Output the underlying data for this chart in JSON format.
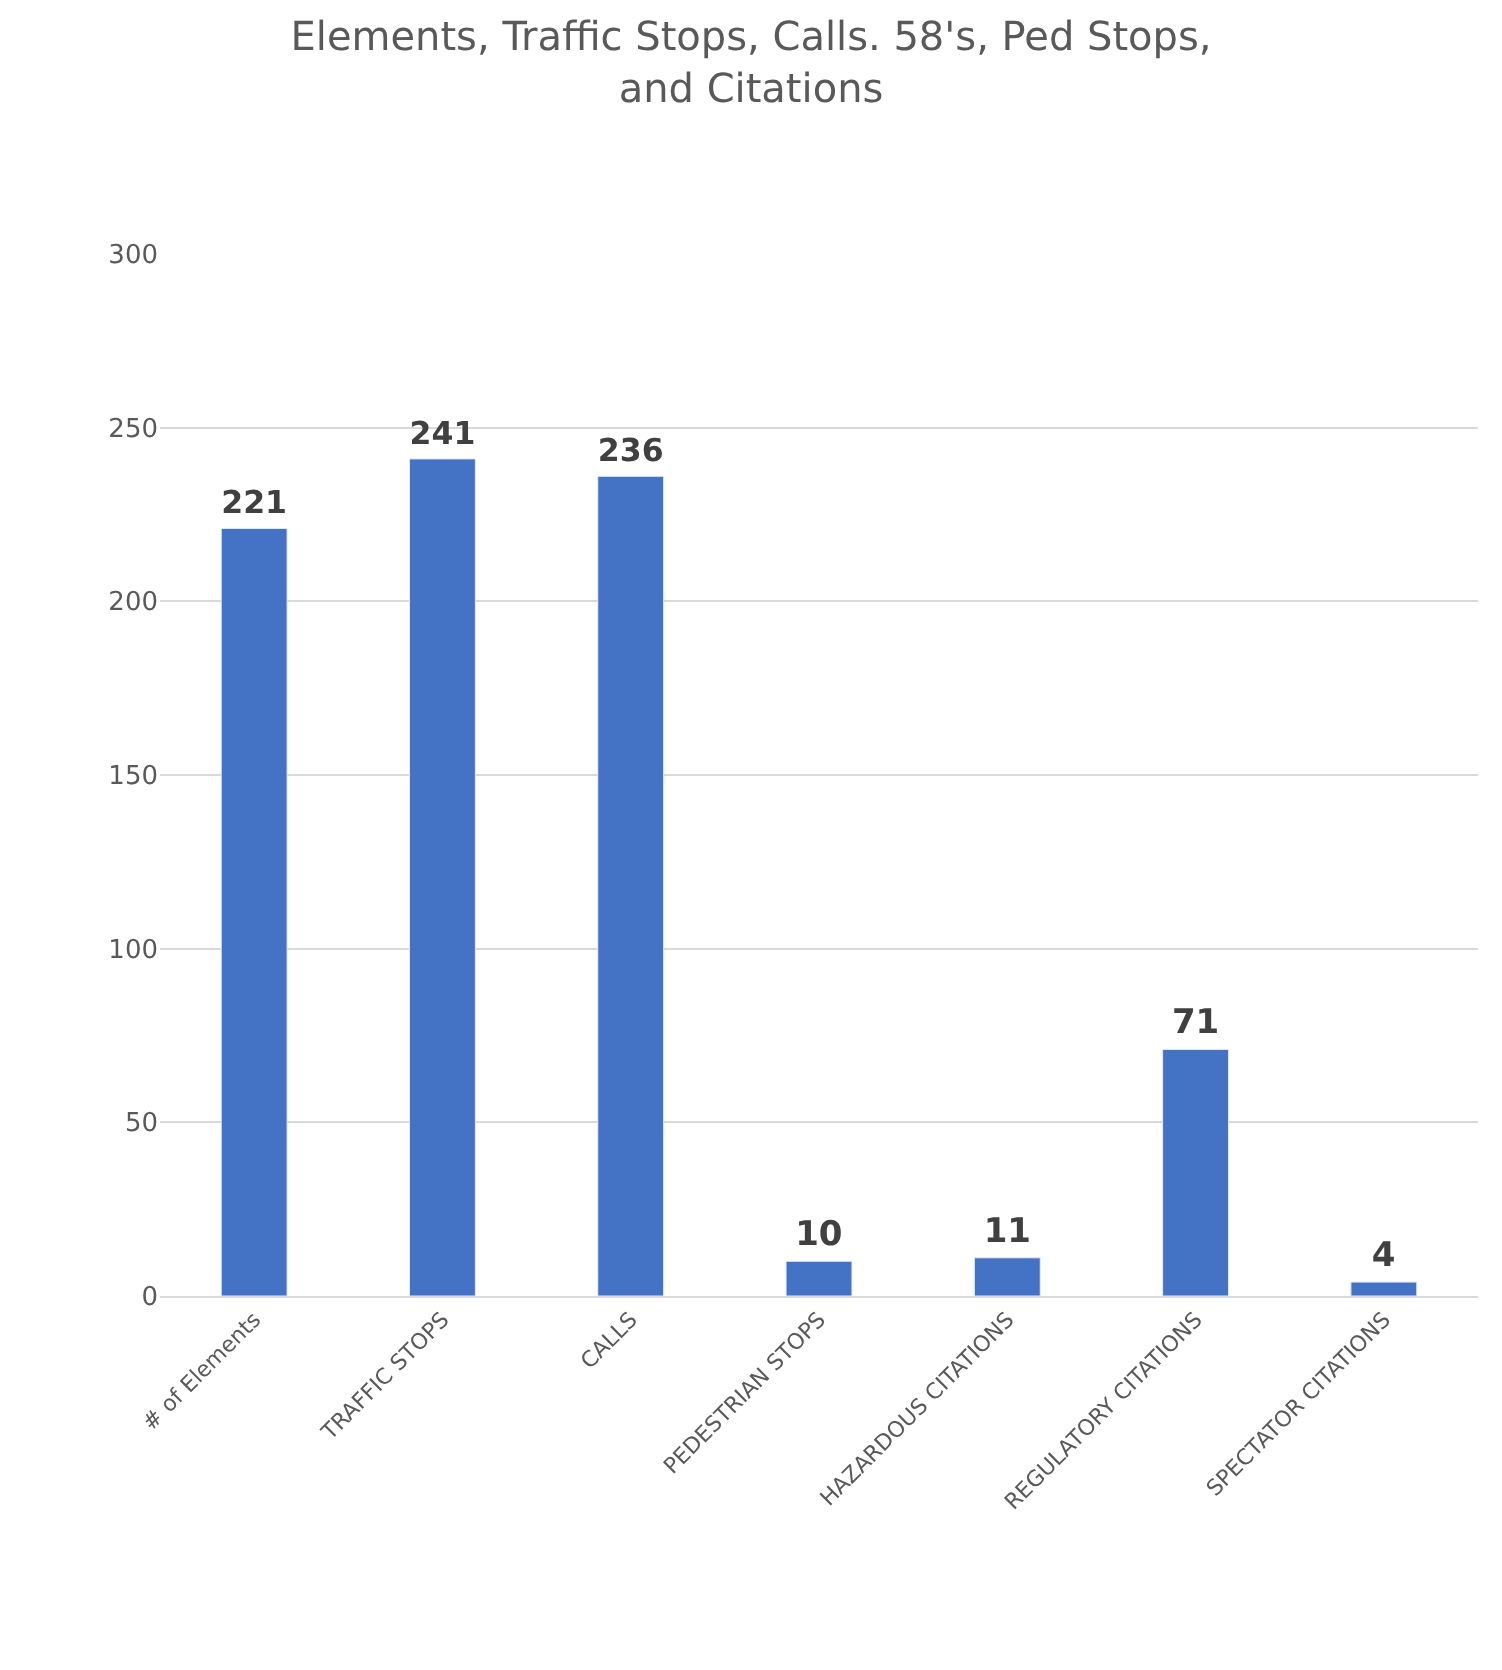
{
  "chart_data": {
    "type": "bar",
    "title": "Elements, Traffic Stops, Calls. 58's, Ped Stops,\nand Citations",
    "categories": [
      "# of Elements",
      "TRAFFIC STOPS",
      "CALLS",
      "PEDESTRIAN STOPS",
      "HAZARDOUS CITATIONS",
      "REGULATORY CITATIONS",
      "SPECTATOR CITATIONS"
    ],
    "values": [
      221,
      241,
      236,
      10,
      11,
      71,
      4
    ],
    "color": "#4472c4",
    "ylim": [
      0,
      300
    ],
    "yticks": [
      0,
      50,
      100,
      150,
      200,
      250,
      300
    ],
    "grid": "y",
    "data_labels": true,
    "legend": false
  }
}
